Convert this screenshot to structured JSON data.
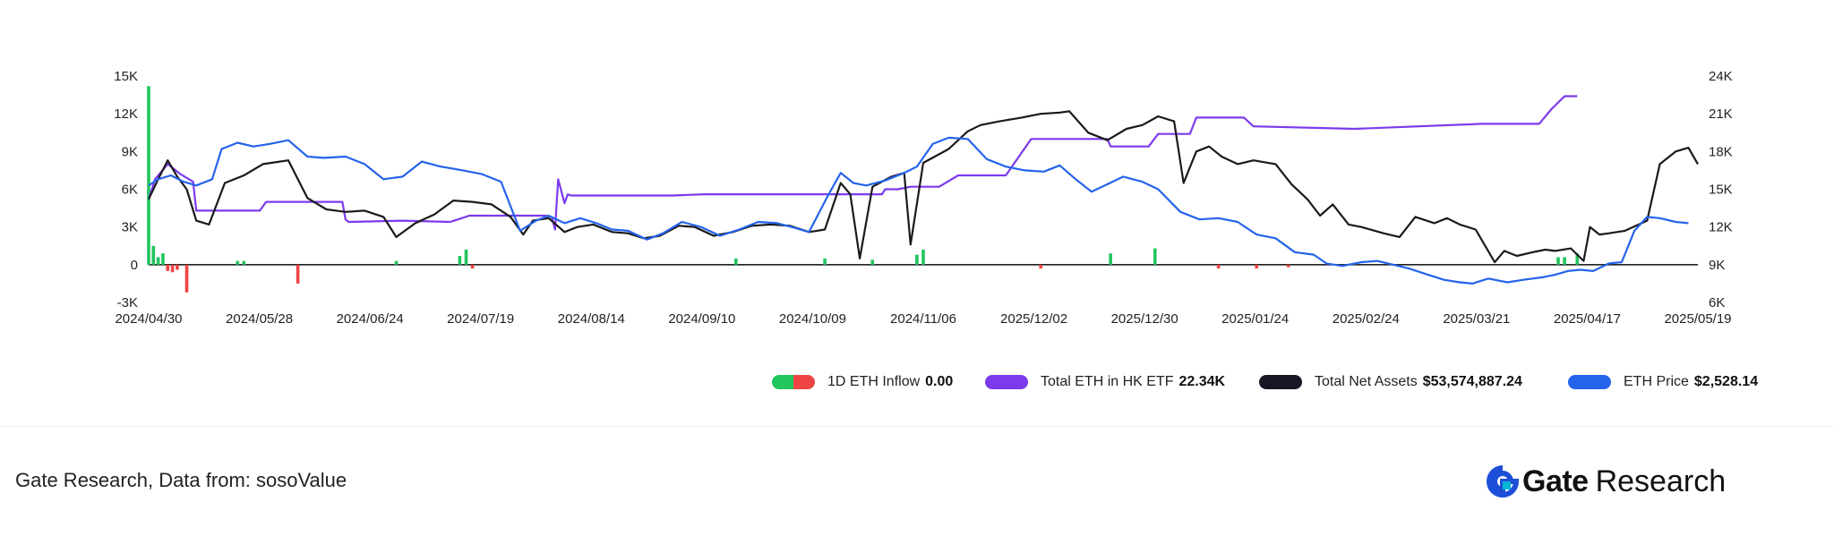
{
  "chart_data": {
    "type": "line",
    "x_ticks": [
      "2024/04/30",
      "2024/05/28",
      "2024/06/24",
      "2024/07/19",
      "2024/08/14",
      "2024/09/10",
      "2024/10/09",
      "2024/11/06",
      "2025/12/02",
      "2025/12/30",
      "2025/01/24",
      "2025/02/24",
      "2025/03/21",
      "2025/04/17",
      "2025/05/19"
    ],
    "y_left_ticks": [
      "15K",
      "12K",
      "9K",
      "6K",
      "3K",
      "0",
      "-3K"
    ],
    "y_left_lim": [
      -3000,
      15000
    ],
    "y_right_ticks": [
      "24K",
      "21K",
      "18K",
      "15K",
      "12K",
      "9K",
      "6K"
    ],
    "y_right_lim": [
      6000,
      24000
    ],
    "series": [
      {
        "name": "1D ETH Inflow",
        "type": "bar",
        "axis": "left",
        "colors": {
          "positive": "#22c55e",
          "negative": "#ef4444"
        },
        "points": [
          [
            0,
            14200
          ],
          [
            1.5,
            1500
          ],
          [
            3,
            600
          ],
          [
            4.5,
            900
          ],
          [
            6,
            -500
          ],
          [
            7.5,
            -600
          ],
          [
            9,
            -400
          ],
          [
            12,
            -2200
          ],
          [
            28,
            300
          ],
          [
            30,
            300
          ],
          [
            47,
            -1500
          ],
          [
            78,
            300
          ],
          [
            98,
            700
          ],
          [
            100,
            1200
          ],
          [
            102,
            -300
          ],
          [
            185,
            500
          ],
          [
            213,
            500
          ],
          [
            228,
            400
          ],
          [
            242,
            800
          ],
          [
            244,
            1200
          ],
          [
            281,
            -300
          ],
          [
            303,
            900
          ],
          [
            317,
            1300
          ],
          [
            337,
            -300
          ],
          [
            349,
            -300
          ],
          [
            359,
            -200
          ],
          [
            444,
            600
          ],
          [
            446,
            600
          ],
          [
            450,
            900
          ]
        ]
      },
      {
        "name": "Total ETH in HK ETF",
        "type": "line",
        "axis": "left",
        "color": "#7c3aed",
        "points": [
          [
            0,
            5200
          ],
          [
            2,
            6800
          ],
          [
            6,
            8000
          ],
          [
            10,
            7200
          ],
          [
            14,
            6600
          ],
          [
            15,
            4300
          ],
          [
            20,
            4300
          ],
          [
            35,
            4300
          ],
          [
            37,
            5000
          ],
          [
            61,
            5000
          ],
          [
            62,
            3600
          ],
          [
            63,
            3400
          ],
          [
            80,
            3500
          ],
          [
            95,
            3400
          ],
          [
            101,
            3900
          ],
          [
            125,
            3900
          ],
          [
            127,
            3800
          ],
          [
            128,
            2800
          ],
          [
            129,
            6800
          ],
          [
            131,
            4900
          ],
          [
            132,
            5600
          ],
          [
            133,
            5500
          ],
          [
            155,
            5500
          ],
          [
            165,
            5500
          ],
          [
            175,
            5600
          ],
          [
            200,
            5600
          ],
          [
            220,
            5600
          ],
          [
            231,
            5600
          ],
          [
            232,
            6000
          ],
          [
            236,
            6000
          ],
          [
            240,
            6200
          ],
          [
            249,
            6200
          ],
          [
            255,
            7100
          ],
          [
            270,
            7100
          ],
          [
            278,
            10000
          ],
          [
            302,
            10000
          ],
          [
            303,
            9400
          ],
          [
            315,
            9400
          ],
          [
            318,
            10400
          ],
          [
            328,
            10400
          ],
          [
            330,
            11700
          ],
          [
            345,
            11700
          ],
          [
            348,
            11000
          ],
          [
            380,
            10800
          ],
          [
            420,
            11200
          ],
          [
            438,
            11200
          ],
          [
            442,
            12400
          ],
          [
            446,
            13400
          ],
          [
            450,
            13400
          ]
        ]
      },
      {
        "name": "Total Net Assets",
        "type": "line",
        "axis": "left",
        "color": "#1a1a1a",
        "points": [
          [
            0,
            5200
          ],
          [
            3,
            6800
          ],
          [
            6,
            8300
          ],
          [
            9,
            7000
          ],
          [
            12,
            6000
          ],
          [
            15,
            3500
          ],
          [
            19,
            3200
          ],
          [
            24,
            6500
          ],
          [
            30,
            7100
          ],
          [
            36,
            8000
          ],
          [
            44,
            8300
          ],
          [
            50,
            5300
          ],
          [
            56,
            4400
          ],
          [
            62,
            4200
          ],
          [
            68,
            4300
          ],
          [
            74,
            3800
          ],
          [
            78,
            2200
          ],
          [
            84,
            3300
          ],
          [
            90,
            4000
          ],
          [
            96,
            5100
          ],
          [
            102,
            5000
          ],
          [
            108,
            4800
          ],
          [
            114,
            3800
          ],
          [
            118,
            2400
          ],
          [
            121,
            3500
          ],
          [
            126,
            3700
          ],
          [
            131,
            2600
          ],
          [
            135,
            3000
          ],
          [
            140,
            3200
          ],
          [
            146,
            2600
          ],
          [
            151,
            2500
          ],
          [
            156,
            2100
          ],
          [
            161,
            2300
          ],
          [
            167,
            3100
          ],
          [
            172,
            3000
          ],
          [
            178,
            2300
          ],
          [
            184,
            2600
          ],
          [
            190,
            3100
          ],
          [
            196,
            3200
          ],
          [
            202,
            3100
          ],
          [
            208,
            2600
          ],
          [
            213,
            2800
          ],
          [
            218,
            6500
          ],
          [
            221,
            5600
          ],
          [
            224,
            500
          ],
          [
            228,
            6200
          ],
          [
            234,
            7000
          ],
          [
            238,
            7300
          ],
          [
            240,
            1600
          ],
          [
            244,
            8100
          ],
          [
            252,
            9200
          ],
          [
            258,
            10600
          ],
          [
            262,
            11100
          ],
          [
            268,
            11400
          ],
          [
            275,
            11700
          ],
          [
            281,
            12000
          ],
          [
            287,
            12100
          ],
          [
            290,
            12200
          ],
          [
            296,
            10500
          ],
          [
            302,
            9900
          ],
          [
            308,
            10800
          ],
          [
            313,
            11100
          ],
          [
            318,
            11800
          ],
          [
            323,
            11400
          ],
          [
            326,
            6500
          ],
          [
            330,
            9000
          ],
          [
            334,
            9400
          ],
          [
            338,
            8600
          ],
          [
            343,
            8000
          ],
          [
            348,
            8300
          ],
          [
            355,
            8000
          ],
          [
            360,
            6400
          ],
          [
            365,
            5200
          ],
          [
            369,
            3900
          ],
          [
            373,
            4800
          ],
          [
            378,
            3200
          ],
          [
            382,
            3000
          ],
          [
            389,
            2500
          ],
          [
            394,
            2200
          ],
          [
            399,
            3800
          ],
          [
            405,
            3300
          ],
          [
            409,
            3700
          ],
          [
            413,
            3200
          ],
          [
            418,
            2800
          ],
          [
            424,
            200
          ],
          [
            427,
            1100
          ],
          [
            431,
            700
          ],
          [
            436,
            1000
          ],
          [
            440,
            1200
          ],
          [
            443,
            1100
          ],
          [
            448,
            1300
          ],
          [
            452,
            300
          ],
          [
            454,
            3000
          ],
          [
            457,
            2400
          ],
          [
            460,
            2500
          ],
          [
            465,
            2700
          ],
          [
            472,
            3500
          ],
          [
            476,
            8000
          ],
          [
            479,
            8600
          ],
          [
            481,
            9000
          ],
          [
            485,
            9300
          ],
          [
            488,
            8000
          ]
        ]
      },
      {
        "name": "ETH Price",
        "type": "line",
        "axis": "right",
        "color": "#2563eb",
        "points": [
          [
            0,
            15300
          ],
          [
            3,
            15800
          ],
          [
            7,
            16100
          ],
          [
            11,
            15600
          ],
          [
            15,
            15300
          ],
          [
            20,
            15800
          ],
          [
            23,
            18200
          ],
          [
            28,
            18700
          ],
          [
            33,
            18400
          ],
          [
            38,
            18600
          ],
          [
            44,
            18900
          ],
          [
            50,
            17600
          ],
          [
            55,
            17500
          ],
          [
            62,
            17600
          ],
          [
            68,
            17000
          ],
          [
            74,
            15800
          ],
          [
            80,
            16000
          ],
          [
            86,
            17200
          ],
          [
            92,
            16800
          ],
          [
            99,
            16500
          ],
          [
            105,
            16200
          ],
          [
            111,
            15600
          ],
          [
            117,
            11700
          ],
          [
            122,
            12500
          ],
          [
            126,
            12900
          ],
          [
            131,
            12300
          ],
          [
            136,
            12700
          ],
          [
            141,
            12300
          ],
          [
            146,
            11800
          ],
          [
            151,
            11700
          ],
          [
            157,
            11000
          ],
          [
            162,
            11500
          ],
          [
            168,
            12400
          ],
          [
            174,
            12000
          ],
          [
            180,
            11300
          ],
          [
            186,
            11800
          ],
          [
            192,
            12400
          ],
          [
            198,
            12300
          ],
          [
            204,
            11900
          ],
          [
            208,
            11600
          ],
          [
            214,
            14500
          ],
          [
            218,
            16300
          ],
          [
            222,
            15500
          ],
          [
            226,
            15300
          ],
          [
            232,
            15700
          ],
          [
            238,
            16300
          ],
          [
            242,
            16800
          ],
          [
            247,
            18600
          ],
          [
            252,
            19100
          ],
          [
            258,
            19000
          ],
          [
            264,
            17400
          ],
          [
            270,
            16800
          ],
          [
            276,
            16500
          ],
          [
            282,
            16400
          ],
          [
            287,
            16900
          ],
          [
            292,
            15800
          ],
          [
            297,
            14800
          ],
          [
            302,
            15400
          ],
          [
            307,
            16000
          ],
          [
            313,
            15600
          ],
          [
            318,
            15000
          ],
          [
            325,
            13200
          ],
          [
            331,
            12600
          ],
          [
            337,
            12700
          ],
          [
            343,
            12400
          ],
          [
            349,
            11400
          ],
          [
            355,
            11100
          ],
          [
            361,
            10000
          ],
          [
            367,
            9800
          ],
          [
            371,
            9100
          ],
          [
            376,
            8900
          ],
          [
            382,
            9200
          ],
          [
            387,
            9300
          ],
          [
            392,
            9000
          ],
          [
            397,
            8700
          ],
          [
            403,
            8200
          ],
          [
            408,
            7800
          ],
          [
            413,
            7600
          ],
          [
            417,
            7500
          ],
          [
            422,
            7900
          ],
          [
            428,
            7600
          ],
          [
            433,
            7800
          ],
          [
            439,
            8000
          ],
          [
            443,
            8200
          ],
          [
            447,
            8500
          ],
          [
            451,
            8600
          ],
          [
            455,
            8500
          ],
          [
            460,
            9100
          ],
          [
            464,
            9200
          ],
          [
            468,
            11700
          ],
          [
            472,
            12800
          ],
          [
            476,
            12700
          ],
          [
            481,
            12400
          ],
          [
            485,
            12300
          ]
        ]
      }
    ]
  },
  "legend": [
    {
      "label": "1D ETH Inflow",
      "value": "0.00",
      "color": "#22c55e",
      "color2": "#ef4444"
    },
    {
      "label": "Total ETH in HK ETF",
      "value": "22.34K",
      "color": "#7c3aed"
    },
    {
      "label": "Total Net Assets",
      "value": "$53,574,887.24",
      "color": "#161722"
    },
    {
      "label": "ETH Price",
      "value": "$2,528.14",
      "color": "#2563eb"
    }
  ],
  "footer": {
    "source": "Gate Research, Data from: sosoValue"
  },
  "brand": {
    "name": "Gate",
    "suffix": "Research",
    "color": "#1d4ed8",
    "accent": "#06b6d4"
  }
}
